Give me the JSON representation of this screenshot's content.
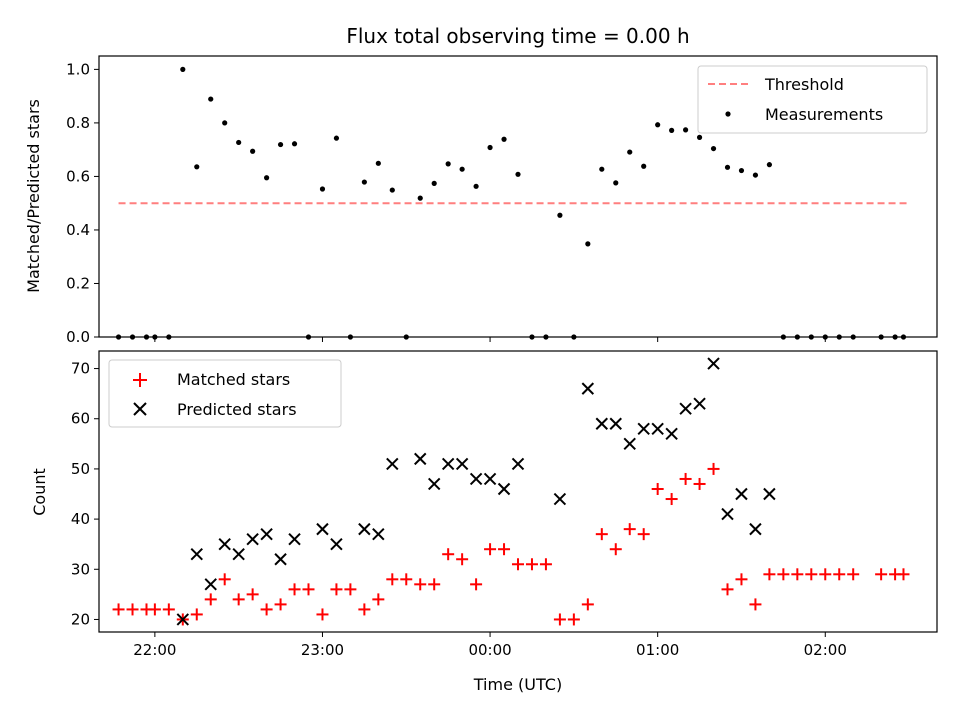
{
  "chart_data": [
    {
      "type": "scatter",
      "title": "Flux total observing time = 0.00 h",
      "ylabel": "Matched/Predicted stars",
      "ylim": [
        0,
        1.05
      ],
      "yticks": [
        0.0,
        0.2,
        0.4,
        0.6,
        0.8,
        1.0
      ],
      "ytick_labels": [
        "0.0",
        "0.2",
        "0.4",
        "0.6",
        "0.8",
        "1.0"
      ],
      "xlim": [
        "21:40",
        "02:40"
      ],
      "legend_position": "upper right",
      "threshold": {
        "name": "Threshold",
        "value": 0.5,
        "x_start": "21:47",
        "x_end": "02:30",
        "color": "#ff7f7f",
        "style": "dashed"
      },
      "series": [
        {
          "name": "Measurements",
          "marker": "dot",
          "color": "#000000",
          "points": [
            [
              "21:47",
              0.0
            ],
            [
              "21:52",
              0.0
            ],
            [
              "21:57",
              0.0
            ],
            [
              "22:00",
              0.0
            ],
            [
              "22:05",
              0.0
            ],
            [
              "22:10",
              1.0
            ],
            [
              "22:15",
              0.636
            ],
            [
              "22:20",
              0.889
            ],
            [
              "22:25",
              0.8
            ],
            [
              "22:30",
              0.727
            ],
            [
              "22:35",
              0.694
            ],
            [
              "22:40",
              0.595
            ],
            [
              "22:45",
              0.719
            ],
            [
              "22:50",
              0.722
            ],
            [
              "22:55",
              0.0
            ],
            [
              "23:00",
              0.553
            ],
            [
              "23:05",
              0.743
            ],
            [
              "23:10",
              0.0
            ],
            [
              "23:15",
              0.579
            ],
            [
              "23:20",
              0.649
            ],
            [
              "23:25",
              0.549
            ],
            [
              "23:30",
              0.0
            ],
            [
              "23:35",
              0.519
            ],
            [
              "23:40",
              0.574
            ],
            [
              "23:45",
              0.647
            ],
            [
              "23:50",
              0.627
            ],
            [
              "23:55",
              0.563
            ],
            [
              "00:00",
              0.708
            ],
            [
              "00:05",
              0.739
            ],
            [
              "00:10",
              0.608
            ],
            [
              "00:15",
              0.0
            ],
            [
              "00:20",
              0.0
            ],
            [
              "00:25",
              0.455
            ],
            [
              "00:30",
              0.0
            ],
            [
              "00:35",
              0.348
            ],
            [
              "00:40",
              0.627
            ],
            [
              "00:45",
              0.576
            ],
            [
              "00:50",
              0.691
            ],
            [
              "00:55",
              0.638
            ],
            [
              "01:00",
              0.793
            ],
            [
              "01:05",
              0.772
            ],
            [
              "01:10",
              0.774
            ],
            [
              "01:15",
              0.746
            ],
            [
              "01:20",
              0.704
            ],
            [
              "01:25",
              0.634
            ],
            [
              "01:30",
              0.622
            ],
            [
              "01:35",
              0.605
            ],
            [
              "01:40",
              0.644
            ],
            [
              "01:45",
              0.0
            ],
            [
              "01:50",
              0.0
            ],
            [
              "01:55",
              0.0
            ],
            [
              "02:00",
              0.0
            ],
            [
              "02:05",
              0.0
            ],
            [
              "02:10",
              0.0
            ],
            [
              "02:20",
              0.0
            ],
            [
              "02:25",
              0.0
            ],
            [
              "02:28",
              0.0
            ]
          ]
        }
      ]
    },
    {
      "type": "scatter",
      "xlabel": "Time (UTC)",
      "ylabel": "Count",
      "ylim": [
        17.5,
        73.5
      ],
      "yticks": [
        20,
        30,
        40,
        50,
        60,
        70
      ],
      "ytick_labels": [
        "20",
        "30",
        "40",
        "50",
        "60",
        "70"
      ],
      "xlim": [
        "21:40",
        "02:40"
      ],
      "xticks": [
        "22:00",
        "23:00",
        "00:00",
        "01:00",
        "02:00"
      ],
      "xtick_labels": [
        "22:00",
        "23:00",
        "00:00",
        "01:00",
        "02:00"
      ],
      "legend_position": "upper left",
      "series": [
        {
          "name": "Matched stars",
          "marker": "plus",
          "color": "#ff0000",
          "points": [
            [
              "21:47",
              22
            ],
            [
              "21:52",
              22
            ],
            [
              "21:57",
              22
            ],
            [
              "22:00",
              22
            ],
            [
              "22:05",
              22
            ],
            [
              "22:10",
              20
            ],
            [
              "22:15",
              21
            ],
            [
              "22:20",
              24
            ],
            [
              "22:25",
              28
            ],
            [
              "22:30",
              24
            ],
            [
              "22:35",
              25
            ],
            [
              "22:40",
              22
            ],
            [
              "22:45",
              23
            ],
            [
              "22:50",
              26
            ],
            [
              "22:55",
              26
            ],
            [
              "23:00",
              21
            ],
            [
              "23:05",
              26
            ],
            [
              "23:10",
              26
            ],
            [
              "23:15",
              22
            ],
            [
              "23:20",
              24
            ],
            [
              "23:25",
              28
            ],
            [
              "23:30",
              28
            ],
            [
              "23:35",
              27
            ],
            [
              "23:40",
              27
            ],
            [
              "23:45",
              33
            ],
            [
              "23:50",
              32
            ],
            [
              "23:55",
              27
            ],
            [
              "00:00",
              34
            ],
            [
              "00:05",
              34
            ],
            [
              "00:10",
              31
            ],
            [
              "00:15",
              31
            ],
            [
              "00:20",
              31
            ],
            [
              "00:25",
              20
            ],
            [
              "00:30",
              20
            ],
            [
              "00:35",
              23
            ],
            [
              "00:40",
              37
            ],
            [
              "00:45",
              34
            ],
            [
              "00:50",
              38
            ],
            [
              "00:55",
              37
            ],
            [
              "01:00",
              46
            ],
            [
              "01:05",
              44
            ],
            [
              "01:10",
              48
            ],
            [
              "01:15",
              47
            ],
            [
              "01:20",
              50
            ],
            [
              "01:25",
              26
            ],
            [
              "01:30",
              28
            ],
            [
              "01:35",
              23
            ],
            [
              "01:40",
              29
            ],
            [
              "01:45",
              29
            ],
            [
              "01:50",
              29
            ],
            [
              "01:55",
              29
            ],
            [
              "02:00",
              29
            ],
            [
              "02:05",
              29
            ],
            [
              "02:10",
              29
            ],
            [
              "02:20",
              29
            ],
            [
              "02:25",
              29
            ],
            [
              "02:28",
              29
            ]
          ]
        },
        {
          "name": "Predicted stars",
          "marker": "x",
          "color": "#000000",
          "points": [
            [
              "22:10",
              20
            ],
            [
              "22:15",
              33
            ],
            [
              "22:20",
              27
            ],
            [
              "22:25",
              35
            ],
            [
              "22:30",
              33
            ],
            [
              "22:35",
              36
            ],
            [
              "22:40",
              37
            ],
            [
              "22:45",
              32
            ],
            [
              "22:50",
              36
            ],
            [
              "23:00",
              38
            ],
            [
              "23:05",
              35
            ],
            [
              "23:15",
              38
            ],
            [
              "23:20",
              37
            ],
            [
              "23:25",
              51
            ],
            [
              "23:35",
              52
            ],
            [
              "23:40",
              47
            ],
            [
              "23:45",
              51
            ],
            [
              "23:50",
              51
            ],
            [
              "23:55",
              48
            ],
            [
              "00:00",
              48
            ],
            [
              "00:05",
              46
            ],
            [
              "00:10",
              51
            ],
            [
              "00:25",
              44
            ],
            [
              "00:35",
              66
            ],
            [
              "00:40",
              59
            ],
            [
              "00:45",
              59
            ],
            [
              "00:50",
              55
            ],
            [
              "00:55",
              58
            ],
            [
              "01:00",
              58
            ],
            [
              "01:05",
              57
            ],
            [
              "01:10",
              62
            ],
            [
              "01:15",
              63
            ],
            [
              "01:20",
              71
            ],
            [
              "01:25",
              41
            ],
            [
              "01:30",
              45
            ],
            [
              "01:35",
              38
            ],
            [
              "01:40",
              45
            ]
          ]
        }
      ]
    }
  ]
}
